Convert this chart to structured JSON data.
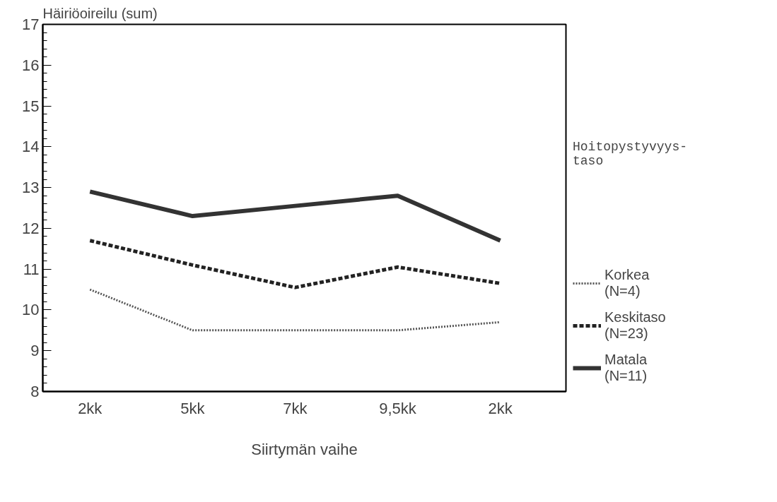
{
  "chart_data": {
    "type": "line",
    "ylabel": "Häiriöoireilu (sum)",
    "xlabel": "Siirtymän vaihe",
    "legend_title": "Hoitopystyvyys-\ntaso",
    "categories": [
      "2kk",
      "5kk",
      "7kk",
      "9,5kk",
      "2kk"
    ],
    "series": [
      {
        "name": "Korkea\n(N=4)",
        "color": "#555555",
        "line_style": "dotted",
        "values": [
          10.5,
          9.5,
          9.5,
          9.5,
          9.7
        ]
      },
      {
        "name": "Keskitaso\n(N=23)",
        "color": "#222222",
        "line_style": "dashed",
        "values": [
          11.7,
          11.1,
          10.55,
          11.05,
          10.65
        ]
      },
      {
        "name": "Matala\n(N=11)",
        "color": "#333333",
        "line_style": "solid",
        "values": [
          12.9,
          12.3,
          12.55,
          12.8,
          11.7
        ]
      }
    ],
    "ylim": [
      8,
      17
    ],
    "yticks": [
      8,
      9,
      10,
      11,
      12,
      13,
      14,
      15,
      16,
      17
    ],
    "grid": false,
    "legend": "right"
  }
}
